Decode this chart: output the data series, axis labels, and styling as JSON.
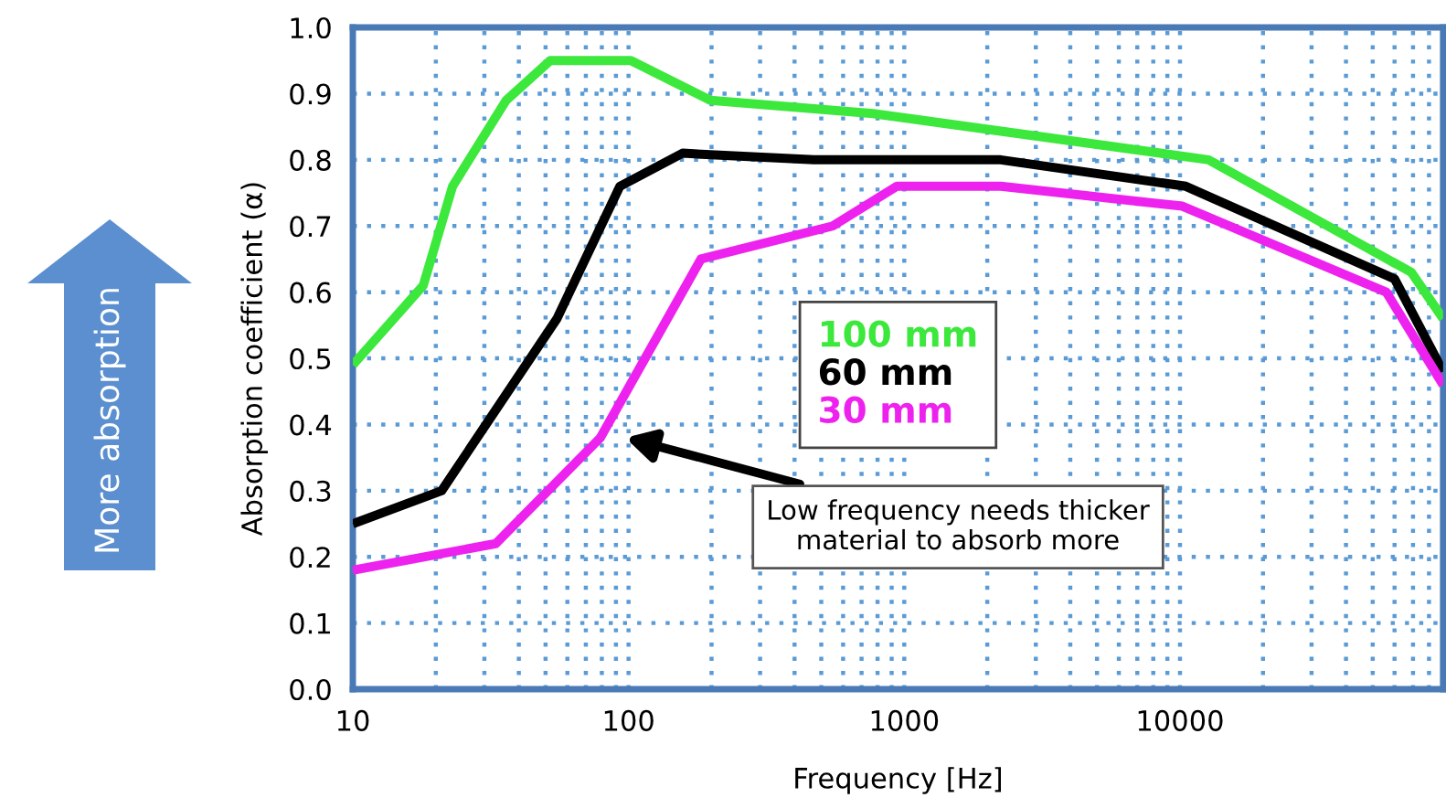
{
  "chart_data": {
    "type": "line",
    "xlabel": "Frequency [Hz]",
    "ylabel": "Absorption coefficient (α)",
    "log": "x",
    "xlim": [
      10,
      90000
    ],
    "xticks": [
      10,
      100,
      1000,
      10000
    ],
    "ylim": [
      0,
      1
    ],
    "yticks": [
      {
        "value": 0,
        "label": "0.0"
      },
      0.1,
      0.2,
      0.3,
      0.4,
      0.5,
      0.6,
      0.7,
      0.8,
      0.9,
      {
        "value": 1,
        "label": "1.0"
      }
    ],
    "grid": true,
    "legend": "center",
    "line_style": "solid",
    "marker": "none",
    "series": [
      {
        "name": "100 mm",
        "color": "#3ce83c",
        "x": [
          10,
          18,
          23,
          36,
          52,
          102,
          198,
          770,
          12700,
          69000,
          90000
        ],
        "values": [
          0.49,
          0.61,
          0.76,
          0.89,
          0.95,
          0.95,
          0.89,
          0.87,
          0.8,
          0.63,
          0.56
        ]
      },
      {
        "name": "60 mm",
        "color": "#000000",
        "x": [
          10,
          21,
          55,
          93,
          157,
          470,
          2240,
          10500,
          60000,
          90000
        ],
        "values": [
          0.25,
          0.3,
          0.56,
          0.76,
          0.81,
          0.8,
          0.8,
          0.76,
          0.62,
          0.48
        ]
      },
      {
        "name": "30 mm",
        "color": "#ee22ee",
        "x": [
          10,
          33,
          79,
          183,
          550,
          940,
          2240,
          10200,
          56000,
          90000
        ],
        "values": [
          0.18,
          0.22,
          0.38,
          0.65,
          0.7,
          0.76,
          0.76,
          0.73,
          0.6,
          0.46
        ]
      }
    ],
    "annotations": [
      "Low frequency needs thicker\nmaterial to absorb more",
      "More absorption"
    ]
  }
}
